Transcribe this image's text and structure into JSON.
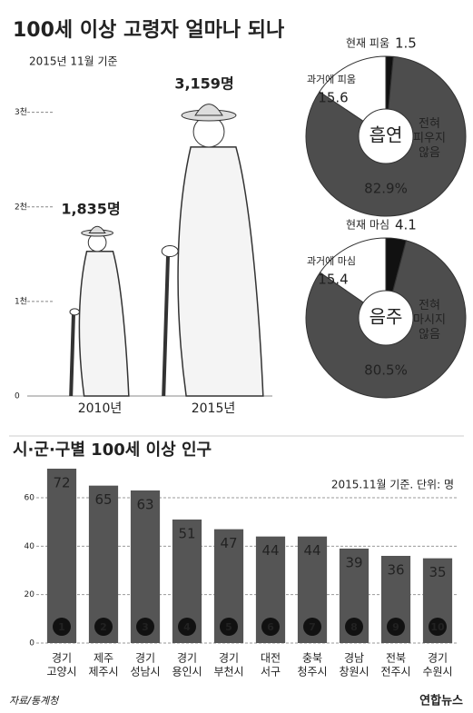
{
  "title": "100세 이상 고령자 얼마나 되나",
  "subtitle": "2015년 11월 기준",
  "chart_data": [
    {
      "type": "figure",
      "categories": [
        "2010년",
        "2015년"
      ],
      "values": [
        1835,
        3159
      ],
      "value_labels": [
        "1,835명",
        "3,159명"
      ],
      "ylim": [
        0,
        3400
      ],
      "yticks": [
        0,
        {
          "value": 1000,
          "label": "1천"
        },
        {
          "value": 2000,
          "label": "2천"
        },
        {
          "value": 3000,
          "label": "3천"
        }
      ]
    },
    {
      "type": "pie",
      "center_label": "흡연",
      "labels": [
        "현재 피움",
        "과거에 피움",
        "전혀 피우지 않음"
      ],
      "values": [
        1.5,
        15.6,
        82.9
      ],
      "value_labels": [
        "1.5",
        "15.6",
        "82.9%"
      ],
      "colors": [
        "#111111",
        "#ffffff",
        "#4d4d4d"
      ]
    },
    {
      "type": "pie",
      "center_label": "음주",
      "labels": [
        "현재 마심",
        "과거에 마심",
        "전혀 마시지 않음"
      ],
      "values": [
        4.1,
        15.4,
        80.5
      ],
      "value_labels": [
        "4.1",
        "15.4",
        "80.5%"
      ],
      "colors": [
        "#111111",
        "#ffffff",
        "#4d4d4d"
      ]
    },
    {
      "type": "bar",
      "title": "시·군·구별 100세 이상 인구",
      "note": "2015.11월 기준. 단위: 명",
      "categories": [
        "경기 고양시",
        "제주 제주시",
        "경기 성남시",
        "경기 용인시",
        "경기 부천시",
        "대전 서구",
        "충북 청주시",
        "경남 창원시",
        "전북 전주시",
        "경기 수원시"
      ],
      "ranks": [
        1,
        2,
        3,
        4,
        5,
        6,
        7,
        8,
        9,
        10
      ],
      "values": [
        72,
        65,
        63,
        51,
        47,
        44,
        44,
        39,
        36,
        35
      ],
      "color": "#555555",
      "ylim": [
        0,
        75
      ],
      "yticks": [
        0,
        20,
        40,
        60
      ]
    }
  ],
  "source": "자료/통계청",
  "logo": "연합뉴스"
}
